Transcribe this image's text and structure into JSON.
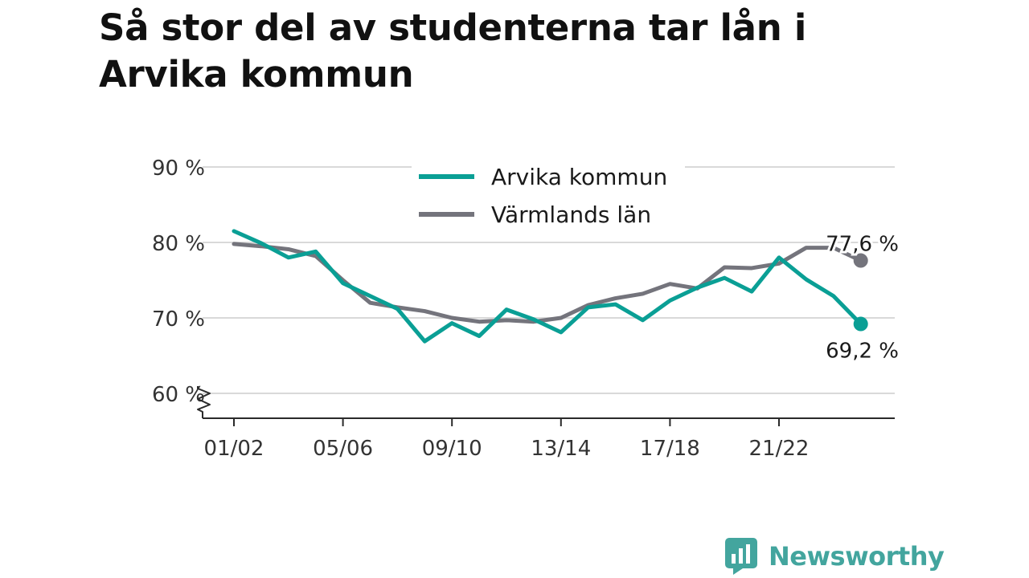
{
  "title": "Så stor del av studenterna tar lån i Arvika kommun",
  "brand": {
    "name": "Newsworthy"
  },
  "colors": {
    "arvika": "#0a9f95",
    "varmland": "#74747c",
    "grid": "#d9d9d9",
    "axis": "#2a2a2a",
    "brand": "#43a59e"
  },
  "chart_data": {
    "type": "line",
    "x": [
      "01/02",
      "02/03",
      "03/04",
      "04/05",
      "05/06",
      "06/07",
      "07/08",
      "08/09",
      "09/10",
      "10/11",
      "11/12",
      "12/13",
      "13/14",
      "14/15",
      "15/16",
      "16/17",
      "17/18",
      "18/19",
      "19/20",
      "20/21",
      "21/22",
      "22/23",
      "23/24",
      "24/25"
    ],
    "x_tick_labels": [
      "01/02",
      "05/06",
      "09/10",
      "13/14",
      "17/18",
      "21/22"
    ],
    "y_tick_labels": [
      "60 %",
      "70 %",
      "80 %",
      "90 %"
    ],
    "y_ticks": [
      60,
      70,
      80,
      90
    ],
    "ylim": [
      57,
      92
    ],
    "axis_break": true,
    "grid": true,
    "legend": "top-center",
    "series": [
      {
        "key": "arvika",
        "name": "Arvika kommun",
        "values": [
          81.5,
          79.9,
          78.0,
          78.8,
          74.6,
          72.9,
          71.2,
          66.9,
          69.3,
          67.6,
          71.1,
          69.8,
          68.1,
          71.4,
          71.8,
          69.7,
          72.3,
          74.0,
          75.3,
          73.5,
          78.0,
          75.1,
          72.9,
          69.2
        ],
        "end_label": "69,2 %"
      },
      {
        "key": "varmland",
        "name": "Värmlands län",
        "values": [
          79.8,
          79.5,
          79.1,
          78.2,
          75.0,
          72.0,
          71.4,
          70.9,
          70.0,
          69.5,
          69.7,
          69.5,
          70.0,
          71.7,
          72.6,
          73.2,
          74.5,
          73.9,
          76.7,
          76.6,
          77.2,
          79.3,
          79.3,
          77.6
        ],
        "end_label": "77,6 %"
      }
    ]
  }
}
